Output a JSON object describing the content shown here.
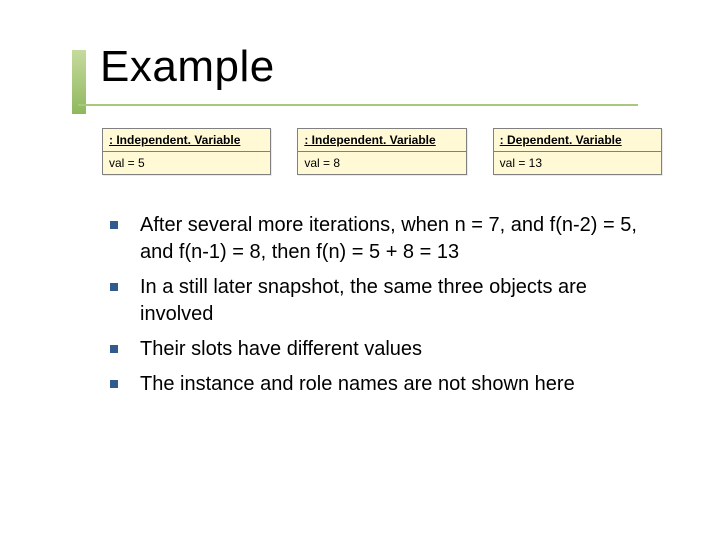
{
  "title": "Example",
  "colors": {
    "accent_green": "#a7c97a",
    "accent_green_light": "#c6db9e",
    "accent_green_dark": "#8fb85e",
    "bullet_square": "#2f5b8f",
    "box_bg": "#fff9d6",
    "box_border": "#808080",
    "text": "#000000",
    "background": "#ffffff"
  },
  "typography": {
    "title_font": "Tahoma",
    "title_size_pt": 33,
    "body_font": "Tahoma",
    "body_size_pt": 15,
    "box_font": "Arial",
    "box_size_pt": 9
  },
  "object_boxes": [
    {
      "header": ": Independent. Variable",
      "slot": "val = 5"
    },
    {
      "header": ": Independent. Variable",
      "slot": "val = 8"
    },
    {
      "header": ": Dependent. Variable",
      "slot": "val = 13"
    }
  ],
  "bullets": [
    "After several more iterations, when n = 7, and f(n-2) = 5, and f(n-1) = 8, then f(n) = 5 + 8 = 13",
    "In a still later snapshot, the same three objects are involved",
    "Their slots have different values",
    "The instance and role names are not shown here"
  ]
}
